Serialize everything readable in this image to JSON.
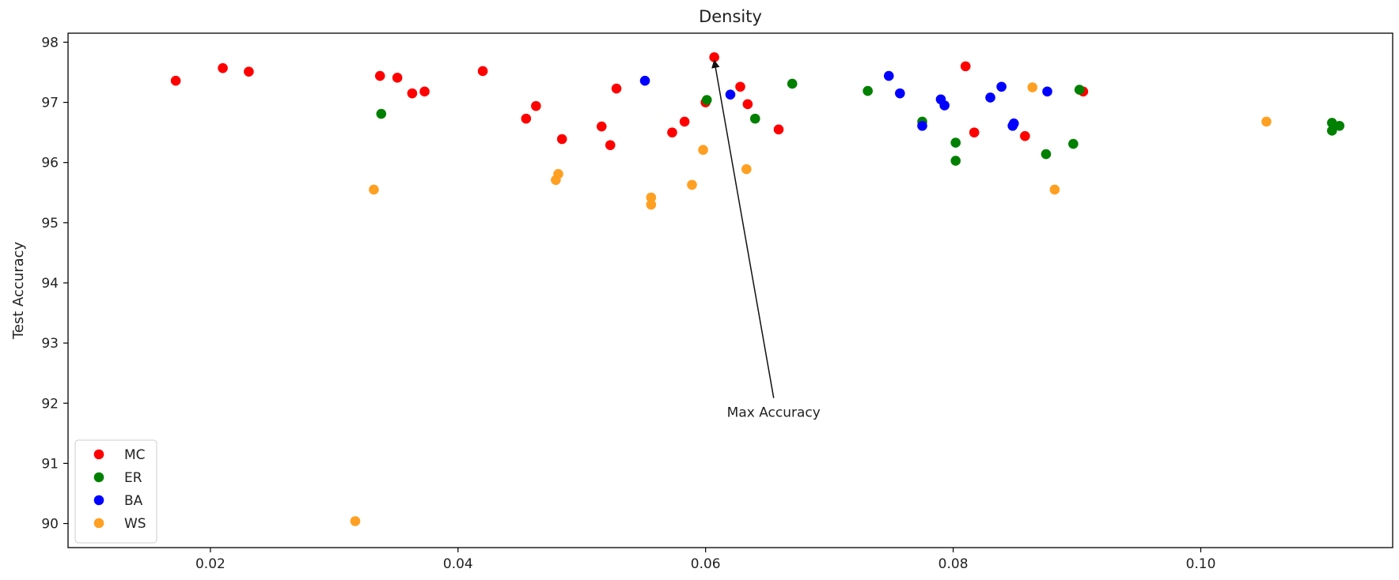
{
  "chart_data": {
    "type": "scatter",
    "title": "Density",
    "xlabel": "",
    "ylabel": "Test Accuracy",
    "xlim": [
      0.0085,
      0.1155
    ],
    "ylim": [
      89.6,
      98.15
    ],
    "xticks": [
      0.02,
      0.04,
      0.06,
      0.08,
      0.1
    ],
    "xtick_labels": [
      "0.02",
      "0.04",
      "0.06",
      "0.08",
      "0.10"
    ],
    "yticks": [
      90,
      91,
      92,
      93,
      94,
      95,
      96,
      97,
      98
    ],
    "ytick_labels": [
      "90",
      "91",
      "92",
      "93",
      "94",
      "95",
      "96",
      "97",
      "98"
    ],
    "grid": false,
    "legend": "lower-left",
    "series": [
      {
        "name": "MC",
        "color": "#ff0000",
        "points": [
          [
            0.0172,
            97.36
          ],
          [
            0.021,
            97.57
          ],
          [
            0.0231,
            97.51
          ],
          [
            0.0337,
            97.44
          ],
          [
            0.0351,
            97.41
          ],
          [
            0.0363,
            97.15
          ],
          [
            0.0373,
            97.18
          ],
          [
            0.042,
            97.52
          ],
          [
            0.0455,
            96.73
          ],
          [
            0.0463,
            96.94
          ],
          [
            0.0484,
            96.39
          ],
          [
            0.0516,
            96.6
          ],
          [
            0.0523,
            96.29
          ],
          [
            0.0528,
            97.23
          ],
          [
            0.0573,
            96.5
          ],
          [
            0.0583,
            96.68
          ],
          [
            0.06,
            97.0
          ],
          [
            0.0607,
            97.75
          ],
          [
            0.0628,
            97.26
          ],
          [
            0.0634,
            96.97
          ],
          [
            0.0659,
            96.55
          ],
          [
            0.081,
            97.6
          ],
          [
            0.0817,
            96.5
          ],
          [
            0.0858,
            96.44
          ],
          [
            0.0905,
            97.18
          ]
        ]
      },
      {
        "name": "ER",
        "color": "#008000",
        "points": [
          [
            0.0338,
            96.81
          ],
          [
            0.0601,
            97.04
          ],
          [
            0.064,
            96.73
          ],
          [
            0.067,
            97.31
          ],
          [
            0.0731,
            97.19
          ],
          [
            0.0775,
            96.68
          ],
          [
            0.0802,
            96.33
          ],
          [
            0.0802,
            96.03
          ],
          [
            0.0875,
            96.14
          ],
          [
            0.0897,
            96.31
          ],
          [
            0.0902,
            97.21
          ],
          [
            0.1106,
            96.66
          ],
          [
            0.1106,
            96.53
          ],
          [
            0.1112,
            96.61
          ]
        ]
      },
      {
        "name": "BA",
        "color": "#0000ff",
        "points": [
          [
            0.0551,
            97.36
          ],
          [
            0.062,
            97.13
          ],
          [
            0.0748,
            97.44
          ],
          [
            0.0757,
            97.15
          ],
          [
            0.0775,
            96.61
          ],
          [
            0.079,
            97.05
          ],
          [
            0.0793,
            96.95
          ],
          [
            0.083,
            97.08
          ],
          [
            0.0839,
            97.26
          ],
          [
            0.0848,
            96.61
          ],
          [
            0.0849,
            96.65
          ],
          [
            0.0876,
            97.18
          ]
        ]
      },
      {
        "name": "WS",
        "color": "#ffa022",
        "points": [
          [
            0.0317,
            90.04
          ],
          [
            0.0332,
            95.55
          ],
          [
            0.0479,
            95.71
          ],
          [
            0.0481,
            95.81
          ],
          [
            0.0556,
            95.42
          ],
          [
            0.0556,
            95.3
          ],
          [
            0.0589,
            95.63
          ],
          [
            0.0598,
            96.21
          ],
          [
            0.0633,
            95.89
          ],
          [
            0.0864,
            97.25
          ],
          [
            0.0882,
            95.55
          ],
          [
            0.1053,
            96.68
          ]
        ]
      }
    ],
    "annotations": [
      {
        "text": "Max Accuracy",
        "xy": [
          0.0607,
          97.75
        ],
        "xytext": [
          0.0655,
          91.85
        ]
      }
    ]
  }
}
